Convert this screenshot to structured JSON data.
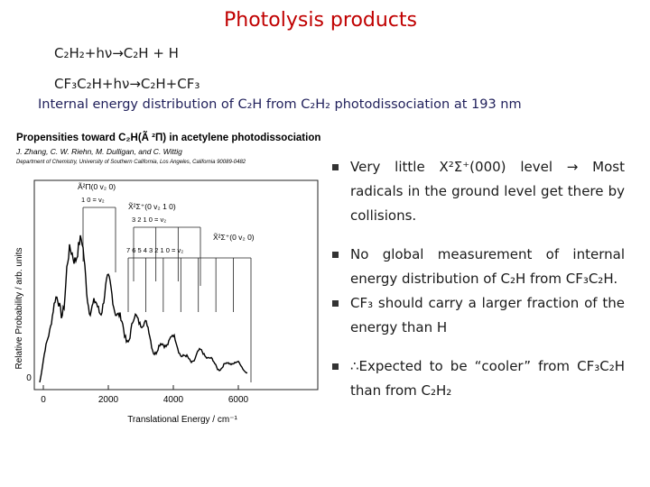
{
  "title": "Photolysis products",
  "reactions": [
    "C₂H₂+hν→C₂H + H",
    "CF₃C₂H+hν→C₂H+CF₃"
  ],
  "subtitle": "Internal energy distribution of C₂H from C₂H₂ photodissociation at 193 nm",
  "figure": {
    "title": "Propensities toward C₂H(Ã ²Π) in acetylene photodissociation",
    "authors": "J. Zhang, C. W. Riehn, M. Dulligan, and C. Wittig",
    "affiliation": "Department of Chemistry, University of Southern California, Los Angeles, California 90089-0482",
    "y_label": "Relative Probability / arb. units",
    "x_label": "Translational Energy / cm⁻¹",
    "y_tick": "0",
    "x_ticks": [
      0,
      2000,
      4000,
      6000
    ],
    "combs": [
      {
        "label": "Ã²Π(0 v₂ 0)",
        "levels": "1   0 = v₂"
      },
      {
        "label": "X̃²Σ⁺(0 v₂ 1 0)",
        "levels": "3  2  1  0 = v₂"
      },
      {
        "label": "X̃²Σ⁺(0 v₂ 0)",
        "levels": "7  6  5  4  3  2  1  0 = v₂"
      }
    ]
  },
  "bullets": [
    "Very little X²Σ⁺(000) level → Most radicals in the ground level get there by collisions.",
    "No global measurement of internal energy distribution of C₂H from CF₃C₂H.",
    "CF₃ should carry a larger fraction of the energy than H",
    "∴Expected to be “cooler” from CF₃C₂H than from C₂H₂"
  ]
}
